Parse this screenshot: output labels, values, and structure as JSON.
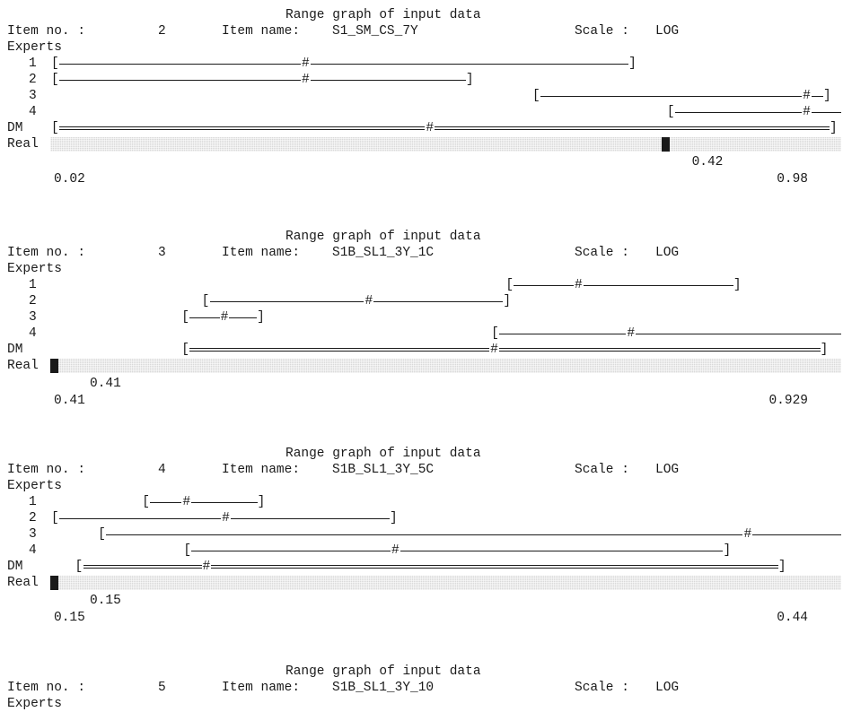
{
  "graph_title": "Range graph of input data",
  "labels": {
    "item_no": "Item no. :",
    "item_name": "Item name:",
    "scale": "Scale :",
    "experts": "Experts",
    "dm": "DM",
    "real": "Real",
    "lbracket": "[",
    "rbracket": "]",
    "median": "#"
  },
  "items": [
    {
      "item_no": "2",
      "item_name": "S1_SM_CS_7Y",
      "scale": "LOG",
      "experts": [
        {
          "no": "1",
          "low": 0.02,
          "median": 0.07,
          "high": 0.36,
          "open_left": false,
          "open_right": false
        },
        {
          "no": "2",
          "low": 0.02,
          "median": 0.07,
          "high": 0.16,
          "open_left": false,
          "open_right": false
        },
        {
          "no": "3",
          "low": 0.22,
          "median": 0.85,
          "high": 0.95,
          "open_left": false,
          "open_right": false
        },
        {
          "no": "4",
          "low": 0.43,
          "median": 0.85,
          "high": 0.98,
          "open_left": false,
          "open_right": true
        }
      ],
      "dm": {
        "low": 0.02,
        "median": 0.13,
        "high": 0.98
      },
      "realization": "0.42",
      "realization_value": 0.42,
      "axis_min": "0.02",
      "axis_max": "0.98"
    },
    {
      "item_no": "3",
      "item_name": "S1B_SL1_3Y_1C",
      "scale": "LOG",
      "experts": [
        {
          "no": "1",
          "low": 0.66,
          "median": 0.71,
          "high": 0.84,
          "open_left": false,
          "open_right": false
        },
        {
          "no": "2",
          "low": 0.48,
          "median": 0.57,
          "high": 0.66,
          "open_left": false,
          "open_right": false
        },
        {
          "no": "3",
          "low": 0.47,
          "median": 0.49,
          "high": 0.51,
          "open_left": false,
          "open_right": false
        },
        {
          "no": "4",
          "low": 0.65,
          "median": 0.75,
          "high": 0.929,
          "open_left": false,
          "open_right": true
        }
      ],
      "dm": {
        "low": 0.47,
        "median": 0.65,
        "high": 0.92
      },
      "realization": "0.41",
      "realization_value": 0.41,
      "axis_min": "0.41",
      "axis_max": "0.929"
    },
    {
      "item_no": "4",
      "item_name": "S1B_SL1_3Y_5C",
      "scale": "LOG",
      "experts": [
        {
          "no": "1",
          "low": 0.17,
          "median": 0.18,
          "high": 0.2,
          "open_left": false,
          "open_right": false
        },
        {
          "no": "2",
          "low": 0.15,
          "median": 0.19,
          "high": 0.24,
          "open_left": false,
          "open_right": false
        },
        {
          "no": "3",
          "low": 0.16,
          "median": 0.39,
          "high": 0.44,
          "open_left": false,
          "open_right": true
        },
        {
          "no": "4",
          "low": 0.18,
          "median": 0.24,
          "high": 0.38,
          "open_left": false,
          "open_right": false
        }
      ],
      "dm": {
        "low": 0.155,
        "median": 0.185,
        "high": 0.41
      },
      "realization": "0.15",
      "realization_value": 0.15,
      "axis_min": "0.15",
      "axis_max": "0.44"
    },
    {
      "item_no": "5",
      "item_name": "S1B_SL1_3Y_10",
      "scale": "LOG",
      "experts": []
    }
  ]
}
